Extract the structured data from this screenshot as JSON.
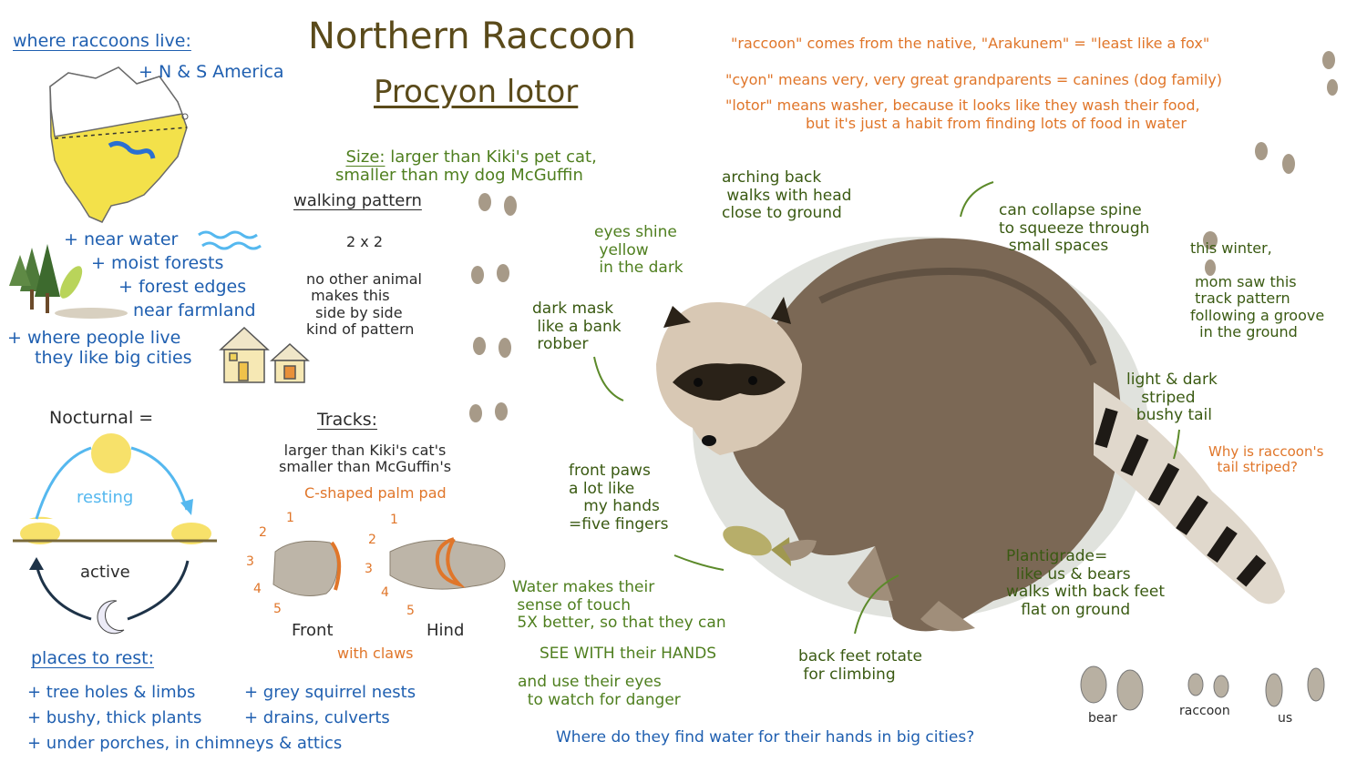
{
  "title": "Northern Raccoon",
  "subtitle": "Procyon lotor",
  "size": {
    "label": "Size:",
    "text": " larger than Kiki's pet cat,\nsmaller than my dog McGuffin"
  },
  "range": {
    "heading": "where raccoons live:",
    "americas": "+ N & S America",
    "habitats": [
      "+ near water",
      "+ moist forests",
      "+ forest edges",
      "near farmland",
      "+ where people live",
      "they like big cities"
    ]
  },
  "nocturnal": {
    "heading": "Nocturnal =",
    "resting": "resting",
    "active": "active"
  },
  "rest_places": {
    "heading": "places to rest:",
    "items": [
      "+ tree holes & limbs",
      "+ grey squirrel nests",
      "+ bushy, thick plants",
      "+ drains, culverts",
      "+ under porches, in chimneys & attics"
    ]
  },
  "walking": {
    "heading": "walking pattern",
    "pattern": "2 x 2",
    "note": "no other animal\n makes this\n  side by side\nkind of pattern"
  },
  "tracks": {
    "heading": "Tracks:",
    "size_note": "larger than Kiki's cat's\nsmaller than McGuffin's",
    "palm": "C-shaped palm pad",
    "digits": [
      "1",
      "2",
      "3",
      "4",
      "5"
    ],
    "front": "Front",
    "hind": "Hind",
    "claws": "with claws"
  },
  "etymology": [
    "\"raccoon\" comes from the native, \"Arakunem\" = \"least like a fox\"",
    "\"cyon\" means very, very great grandparents = canines (dog family)",
    "\"lotor\" means washer, because it looks like they wash their food,",
    "but it's just a habit from finding lots of food in water"
  ],
  "annotations": {
    "eyes": "eyes shine\n yellow\n in the dark",
    "mask": "dark mask\n like a bank\n robber",
    "back": "arching back\n walks with head\nclose to ground",
    "spine": "can collapse spine\nto squeeze through\n  small spaces",
    "winter": "this winter,\n\n mom saw this\n track pattern\nfollowing a groove\n  in the ground",
    "tail": "light & dark\n   striped\n  bushy tail",
    "tail_q": "Why is raccoon's\n  tail striped?",
    "paws": "front paws\na lot like\n   my hands\n=five fingers",
    "touch": "Water makes their\n sense of touch\n 5X better, so that they can",
    "see": "SEE WITH their HANDS",
    "eyes_danger": "and use their eyes\n  to watch for danger",
    "feet": "back feet rotate\n for climbing",
    "plantigrade": "Plantigrade=\n  like us & bears\nwalks with back feet\n   flat on ground"
  },
  "compare": [
    "bear",
    "raccoon",
    "us"
  ],
  "question": "Where do they find water for their hands in big cities?",
  "colors": {
    "blue": "#1f5fb0",
    "green": "#4f7f1f",
    "orange": "#e0762a",
    "brown": "#5a4a1a"
  }
}
